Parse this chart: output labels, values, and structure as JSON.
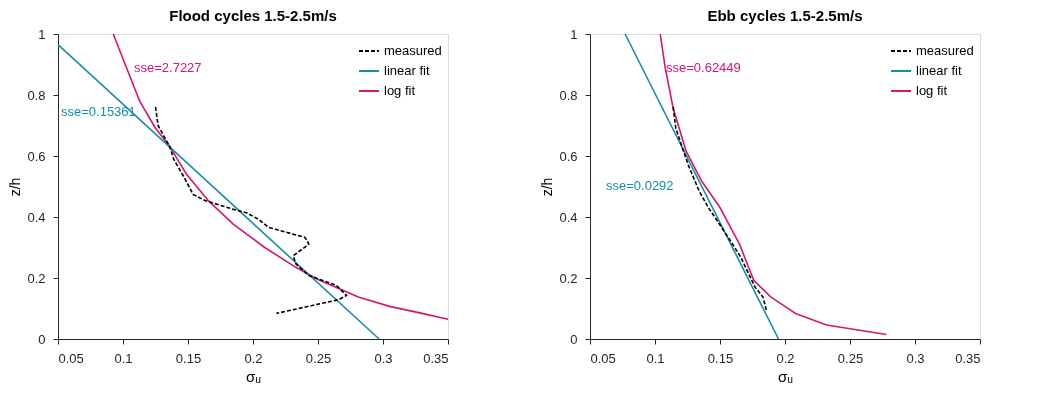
{
  "chart_data": [
    {
      "type": "line",
      "title": "Flood cycles 1.5-2.5m/s",
      "xlabel": "σᵤ",
      "ylabel": "z/h",
      "xlim": [
        0.05,
        0.35
      ],
      "xticks": [
        0.05,
        0.1,
        0.15,
        0.2,
        0.25,
        0.3,
        0.35
      ],
      "ylim": [
        0,
        1
      ],
      "yticks": [
        0,
        0.2,
        0.4,
        0.6,
        0.8,
        1
      ],
      "grid": false,
      "legend": "top right",
      "marker": "none",
      "annotations": [
        "sse=2.7227",
        "sse=0.15361"
      ],
      "series": [
        {
          "name": "measured",
          "color": "#000000",
          "line_style": "dashed",
          "x": [
            0.125,
            0.127,
            0.136,
            0.139,
            0.147,
            0.154,
            0.163,
            0.185,
            0.195,
            0.204,
            0.212,
            0.24,
            0.243,
            0.231,
            0.233,
            0.243,
            0.264,
            0.272,
            0.266,
            0.218
          ],
          "values": [
            0.761,
            0.7,
            0.63,
            0.59,
            0.53,
            0.474,
            0.454,
            0.425,
            0.414,
            0.393,
            0.366,
            0.333,
            0.311,
            0.273,
            0.246,
            0.208,
            0.176,
            0.143,
            0.129,
            0.084
          ]
        },
        {
          "name": "linear fit",
          "color": "#178ea4",
          "line_style": "solid",
          "x": [
            0.05,
            0.297
          ],
          "values": [
            0.965,
            0
          ]
        },
        {
          "name": "log fit",
          "color": "#d4166d",
          "line_style": "solid",
          "x": [
            0.0925,
            0.103,
            0.113,
            0.125,
            0.136,
            0.149,
            0.166,
            0.185,
            0.209,
            0.233,
            0.25,
            0.281,
            0.305,
            0.33,
            0.35
          ],
          "values": [
            1.0,
            0.886,
            0.778,
            0.691,
            0.631,
            0.539,
            0.452,
            0.376,
            0.3,
            0.235,
            0.195,
            0.138,
            0.107,
            0.084,
            0.065
          ]
        }
      ]
    },
    {
      "type": "line",
      "title": "Ebb cycles 1.5-2.5m/s",
      "xlabel": "σᵤ",
      "ylabel": "z/h",
      "xlim": [
        0.05,
        0.35
      ],
      "xticks": [
        0.05,
        0.1,
        0.15,
        0.2,
        0.25,
        0.3,
        0.35
      ],
      "ylim": [
        0,
        1
      ],
      "yticks": [
        0,
        0.2,
        0.4,
        0.6,
        0.8,
        1
      ],
      "grid": false,
      "legend": "top right",
      "marker": "none",
      "annotations": [
        "sse=0.62449",
        "sse=0.0292"
      ],
      "series": [
        {
          "name": "measured",
          "color": "#000000",
          "line_style": "dashed",
          "x": [
            0.114,
            0.116,
            0.122,
            0.126,
            0.134,
            0.141,
            0.148,
            0.158,
            0.166,
            0.172,
            0.177,
            0.183,
            0.186
          ],
          "values": [
            0.761,
            0.691,
            0.615,
            0.566,
            0.485,
            0.431,
            0.387,
            0.322,
            0.268,
            0.214,
            0.17,
            0.138,
            0.089
          ]
        },
        {
          "name": "linear fit",
          "color": "#178ea4",
          "line_style": "solid",
          "x": [
            0.077,
            0.195
          ],
          "values": [
            1.0,
            0
          ]
        },
        {
          "name": "log fit",
          "color": "#d4166d",
          "line_style": "solid",
          "x": [
            0.104,
            0.108,
            0.114,
            0.124,
            0.136,
            0.15,
            0.165,
            0.176,
            0.189,
            0.208,
            0.232,
            0.278
          ],
          "values": [
            1.0,
            0.886,
            0.756,
            0.615,
            0.517,
            0.431,
            0.311,
            0.192,
            0.138,
            0.084,
            0.046,
            0.015
          ]
        }
      ]
    }
  ]
}
